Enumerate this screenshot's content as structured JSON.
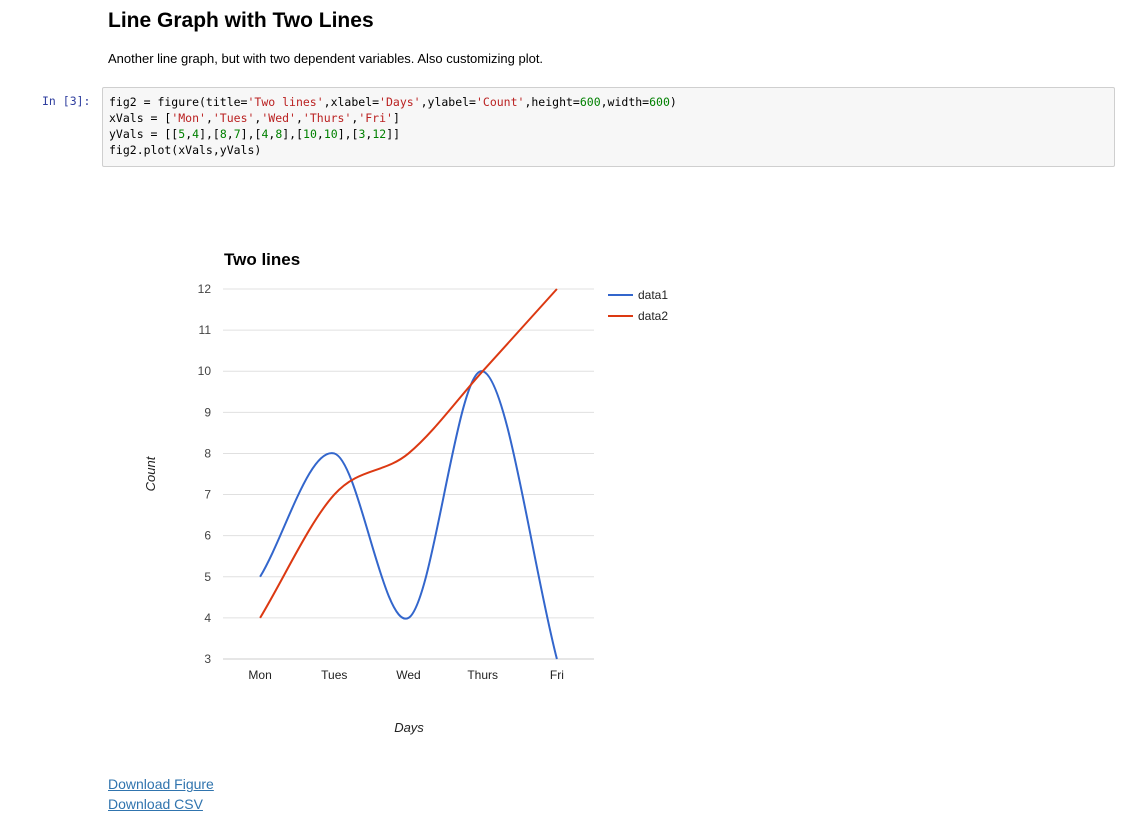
{
  "heading": "Line Graph with Two Lines",
  "description": "Another line graph, but with two dependent variables. Also customizing plot.",
  "cell": {
    "prompt": "In [3]:",
    "code_lines": [
      [
        {
          "t": "fig2 = figure(title=",
          "k": "plain"
        },
        {
          "t": "'Two lines'",
          "k": "str"
        },
        {
          "t": ",xlabel=",
          "k": "plain"
        },
        {
          "t": "'Days'",
          "k": "str"
        },
        {
          "t": ",ylabel=",
          "k": "plain"
        },
        {
          "t": "'Count'",
          "k": "str"
        },
        {
          "t": ",height=",
          "k": "plain"
        },
        {
          "t": "600",
          "k": "num"
        },
        {
          "t": ",width=",
          "k": "plain"
        },
        {
          "t": "600",
          "k": "num"
        },
        {
          "t": ")",
          "k": "plain"
        }
      ],
      [
        {
          "t": "xVals = [",
          "k": "plain"
        },
        {
          "t": "'Mon'",
          "k": "str"
        },
        {
          "t": ",",
          "k": "plain"
        },
        {
          "t": "'Tues'",
          "k": "str"
        },
        {
          "t": ",",
          "k": "plain"
        },
        {
          "t": "'Wed'",
          "k": "str"
        },
        {
          "t": ",",
          "k": "plain"
        },
        {
          "t": "'Thurs'",
          "k": "str"
        },
        {
          "t": ",",
          "k": "plain"
        },
        {
          "t": "'Fri'",
          "k": "str"
        },
        {
          "t": "]",
          "k": "plain"
        }
      ],
      [
        {
          "t": "yVals = [[",
          "k": "plain"
        },
        {
          "t": "5",
          "k": "num"
        },
        {
          "t": ",",
          "k": "plain"
        },
        {
          "t": "4",
          "k": "num"
        },
        {
          "t": "],[",
          "k": "plain"
        },
        {
          "t": "8",
          "k": "num"
        },
        {
          "t": ",",
          "k": "plain"
        },
        {
          "t": "7",
          "k": "num"
        },
        {
          "t": "],[",
          "k": "plain"
        },
        {
          "t": "4",
          "k": "num"
        },
        {
          "t": ",",
          "k": "plain"
        },
        {
          "t": "8",
          "k": "num"
        },
        {
          "t": "],[",
          "k": "plain"
        },
        {
          "t": "10",
          "k": "num"
        },
        {
          "t": ",",
          "k": "plain"
        },
        {
          "t": "10",
          "k": "num"
        },
        {
          "t": "],[",
          "k": "plain"
        },
        {
          "t": "3",
          "k": "num"
        },
        {
          "t": ",",
          "k": "plain"
        },
        {
          "t": "12",
          "k": "num"
        },
        {
          "t": "]]",
          "k": "plain"
        }
      ],
      [
        {
          "t": "fig2.plot(xVals,yVals)",
          "k": "plain"
        }
      ]
    ]
  },
  "chart_data": {
    "type": "line",
    "title": "Two lines",
    "xlabel": "Days",
    "ylabel": "Count",
    "categories": [
      "Mon",
      "Tues",
      "Wed",
      "Thurs",
      "Fri"
    ],
    "series": [
      {
        "name": "data1",
        "values": [
          5,
          8,
          4,
          10,
          3
        ],
        "color": "#3366cc"
      },
      {
        "name": "data2",
        "values": [
          4,
          7,
          8,
          10,
          12
        ],
        "color": "#dc3912"
      }
    ],
    "ylim": [
      3,
      12
    ],
    "yticks": [
      3,
      4,
      5,
      6,
      7,
      8,
      9,
      10,
      11,
      12
    ],
    "grid": true,
    "legend_position": "right",
    "curve": "smooth"
  },
  "links": {
    "download_figure": "Download Figure",
    "download_csv": "Download CSV"
  }
}
